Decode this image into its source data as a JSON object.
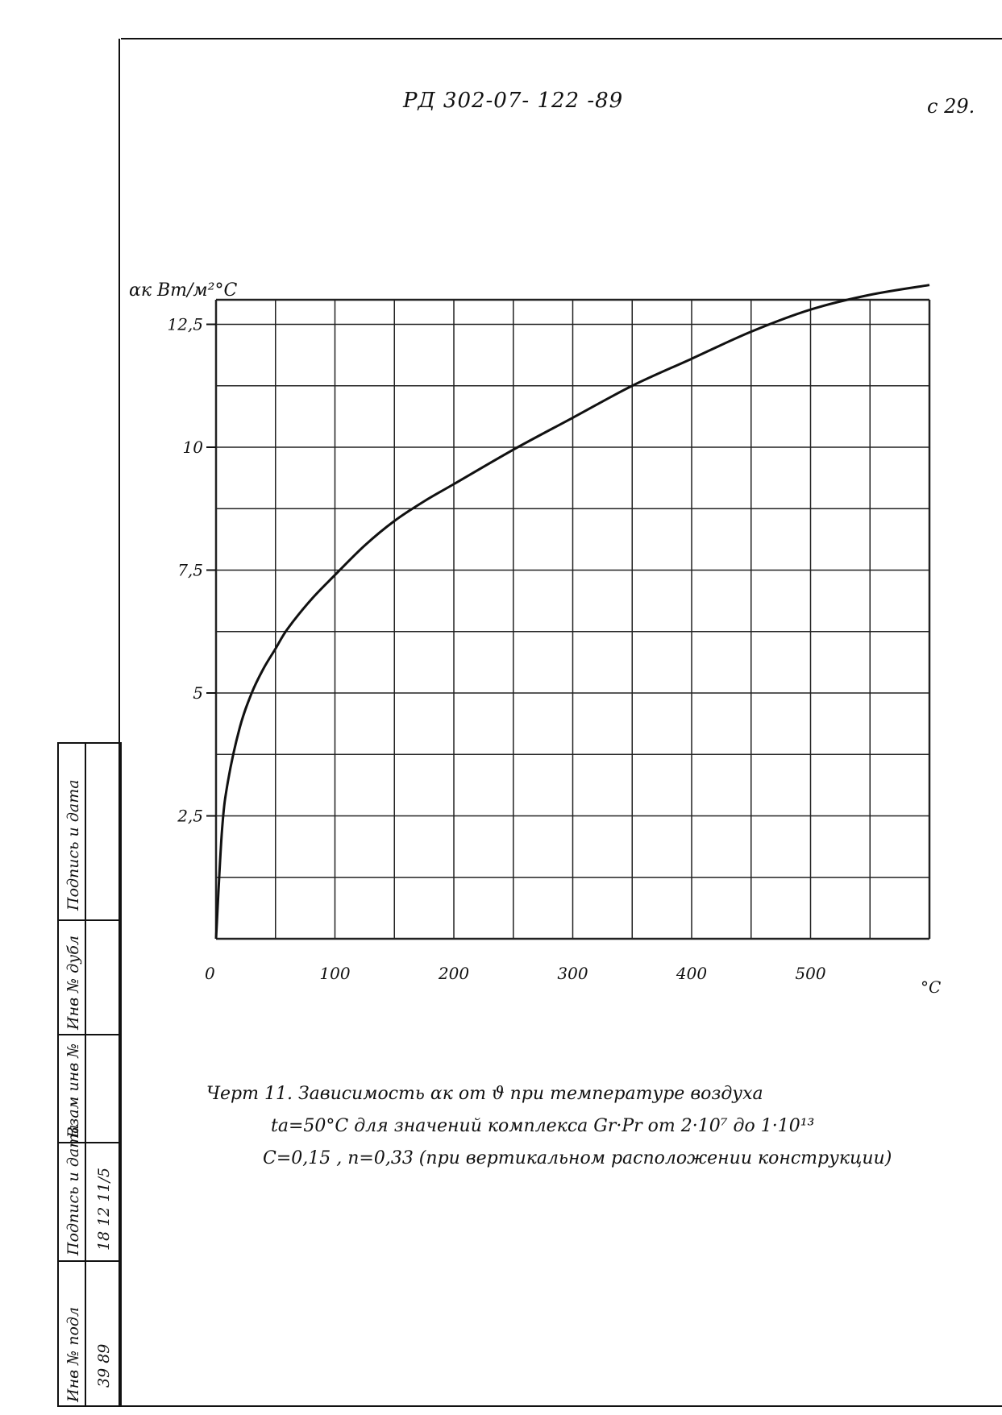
{
  "header": {
    "document_code": "РД 302-07- 122 -89",
    "page_number": "с 29."
  },
  "caption": {
    "line1": "Черт 11. Зависимость αк от ϑ при температуре воздуха",
    "line2": "tа=50°С для значений комплекса Gr·Pr от 2·10⁷ до 1·10¹³",
    "line3": "С=0,15 , n=0,33 (при вертикальном расположении конструкции)"
  },
  "sidebar": {
    "labels": [
      "Инв № подл",
      "Подпись и дата",
      "Взам инв №",
      "Инв № дубл",
      "Подпись и дата"
    ],
    "entries": [
      "39 89",
      "18 12 11/5"
    ]
  },
  "chart_data": {
    "type": "line",
    "ylabel": "αк Вт/м²°С",
    "xlabel": "°С",
    "xlim": [
      0,
      600
    ],
    "ylim": [
      0,
      13
    ],
    "grid": true,
    "x_ticks": [
      {
        "value": 0,
        "label": "0"
      },
      {
        "value": 100,
        "label": "100"
      },
      {
        "value": 200,
        "label": "200"
      },
      {
        "value": 300,
        "label": "300"
      },
      {
        "value": 400,
        "label": "400"
      },
      {
        "value": 500,
        "label": "500"
      }
    ],
    "y_ticks": [
      {
        "value": 2.5,
        "label": "2,5"
      },
      {
        "value": 5,
        "label": "5"
      },
      {
        "value": 7.5,
        "label": "7,5"
      },
      {
        "value": 10,
        "label": "10"
      },
      {
        "value": 12.5,
        "label": "12,5"
      }
    ],
    "series": [
      {
        "x": [
          0,
          5,
          10,
          20,
          30,
          40,
          50,
          60,
          80,
          100,
          125,
          150,
          175,
          200,
          250,
          300,
          350,
          400,
          450,
          500,
          550,
          600
        ],
        "y": [
          0,
          2.2,
          3.2,
          4.3,
          5.0,
          5.5,
          5.9,
          6.3,
          6.9,
          7.4,
          8.0,
          8.5,
          8.9,
          9.25,
          9.95,
          10.6,
          11.25,
          11.8,
          12.35,
          12.8,
          13.1,
          13.3
        ]
      }
    ],
    "colors": {
      "line": "#111111",
      "grid": "#222222"
    }
  }
}
